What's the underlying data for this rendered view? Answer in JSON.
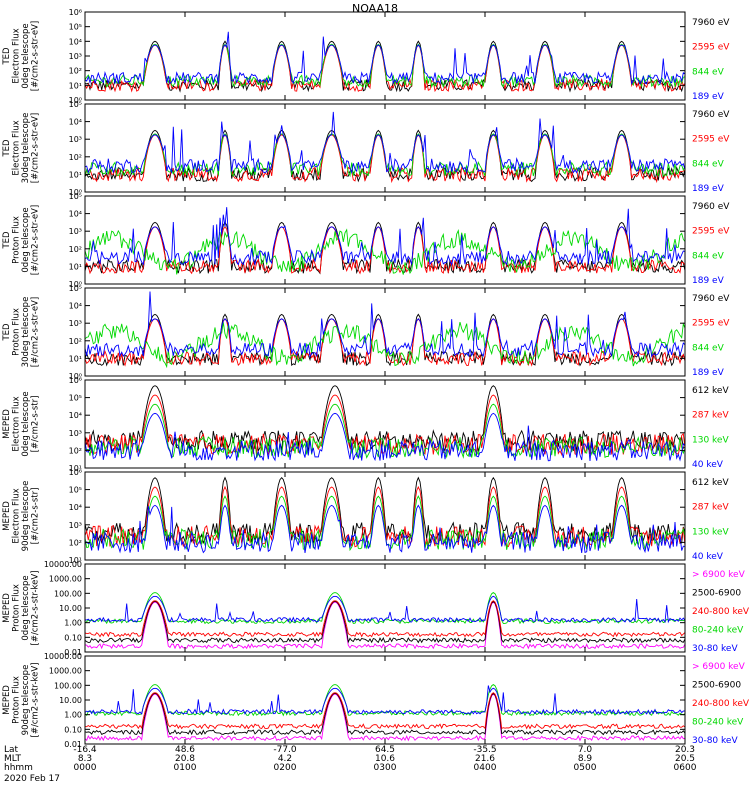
{
  "figure": {
    "title": "NOAA18",
    "date_label": "2020 Feb 17"
  },
  "colors": {
    "black": "#000000",
    "red": "#ff0000",
    "green": "#00d800",
    "blue": "#0000ff",
    "magenta": "#ff00ff"
  },
  "chart_data": [
    {
      "type": "line",
      "name": "panel-ted-electron-0deg",
      "ylabel": [
        "TED",
        "Electron Flux",
        "0deg telescope",
        "[#/cm2-s-str-eV]"
      ],
      "yticks": [
        "10⁰",
        "10¹",
        "10²",
        "10³",
        "10⁴",
        "10⁵",
        "10⁶"
      ],
      "ylim_exp": [
        0,
        6
      ],
      "legend": [
        {
          "label": "7960 eV",
          "color": "black"
        },
        {
          "label": "2595 eV",
          "color": "red"
        },
        {
          "label": "844 eV",
          "color": "green"
        },
        {
          "label": "189 eV",
          "color": "blue"
        }
      ]
    },
    {
      "type": "line",
      "name": "panel-ted-electron-30deg",
      "ylabel": [
        "TED",
        "Electron Flux",
        "30deg telescope",
        "[#/cm2-s-str-eV]"
      ],
      "yticks": [
        "10⁰",
        "10¹",
        "10²",
        "10³",
        "10⁴",
        "10⁵"
      ],
      "ylim_exp": [
        0,
        5
      ],
      "legend": [
        {
          "label": "7960 eV",
          "color": "black"
        },
        {
          "label": "2595 eV",
          "color": "red"
        },
        {
          "label": "844 eV",
          "color": "green"
        },
        {
          "label": "189 eV",
          "color": "blue"
        }
      ]
    },
    {
      "type": "line",
      "name": "panel-ted-proton-0deg",
      "ylabel": [
        "TED",
        "Proton Flux",
        "0deg telescope",
        "[#/cm2-s-str-eV]"
      ],
      "yticks": [
        "10⁰",
        "10¹",
        "10²",
        "10³",
        "10⁴",
        "10⁵"
      ],
      "ylim_exp": [
        0,
        5
      ],
      "legend": [
        {
          "label": "7960 eV",
          "color": "black"
        },
        {
          "label": "2595 eV",
          "color": "red"
        },
        {
          "label": "844 eV",
          "color": "green"
        },
        {
          "label": "189 eV",
          "color": "blue"
        }
      ]
    },
    {
      "type": "line",
      "name": "panel-ted-proton-30deg",
      "ylabel": [
        "TED",
        "Proton Flux",
        "30deg telescope",
        "[#/cm2-s-str-eV]"
      ],
      "yticks": [
        "10⁰",
        "10¹",
        "10²",
        "10³",
        "10⁴",
        "10⁵"
      ],
      "ylim_exp": [
        0,
        5
      ],
      "legend": [
        {
          "label": "7960 eV",
          "color": "black"
        },
        {
          "label": "2595 eV",
          "color": "red"
        },
        {
          "label": "844 eV",
          "color": "green"
        },
        {
          "label": "189 eV",
          "color": "blue"
        }
      ]
    },
    {
      "type": "line",
      "name": "panel-meped-electron-0deg",
      "ylabel": [
        "MEPED",
        "Electron Flux",
        "0deg telescope",
        "[#/cm2-s-str]"
      ],
      "yticks": [
        "10¹",
        "10²",
        "10³",
        "10⁴",
        "10⁵",
        "10⁶"
      ],
      "ylim_exp": [
        1,
        6
      ],
      "legend": [
        {
          "label": "612 keV",
          "color": "black"
        },
        {
          "label": "287 keV",
          "color": "red"
        },
        {
          "label": "130 keV",
          "color": "green"
        },
        {
          "label": "40 keV",
          "color": "blue"
        }
      ]
    },
    {
      "type": "line",
      "name": "panel-meped-electron-90deg",
      "ylabel": [
        "MEPED",
        "Electron Flux",
        "90deg telescope",
        "[#/cm2-s-str]"
      ],
      "yticks": [
        "10¹",
        "10²",
        "10³",
        "10⁴",
        "10⁵",
        "10⁶"
      ],
      "ylim_exp": [
        1,
        6
      ],
      "legend": [
        {
          "label": "612 keV",
          "color": "black"
        },
        {
          "label": "287 keV",
          "color": "red"
        },
        {
          "label": "130 keV",
          "color": "green"
        },
        {
          "label": "40 keV",
          "color": "blue"
        }
      ]
    },
    {
      "type": "line",
      "name": "panel-meped-proton-0deg",
      "ylabel": [
        "MEPED",
        "Proton Flux",
        "0deg telescope",
        "[#/cm2-s-str-keV]"
      ],
      "yticks": [
        "0.01",
        "0.10",
        "1.00",
        "10.00",
        "100.00",
        "1000.00",
        "10000.00"
      ],
      "ylim_exp": [
        -2,
        4
      ],
      "legend": [
        {
          "label": "> 6900 keV",
          "color": "magenta"
        },
        {
          "label": "2500-6900",
          "color": "black"
        },
        {
          "label": "240-800 keV",
          "color": "red"
        },
        {
          "label": "80-240 keV",
          "color": "green"
        },
        {
          "label": "30-80 keV",
          "color": "blue"
        }
      ]
    },
    {
      "type": "line",
      "name": "panel-meped-proton-90deg",
      "ylabel": [
        "MEPED",
        "Proton Flux",
        "90deg telescope",
        "[#/cm2-s-str-keV]"
      ],
      "yticks": [
        "0.01",
        "0.10",
        "1.00",
        "10.00",
        "100.00",
        "1000.00",
        "10000.00"
      ],
      "ylim_exp": [
        -2,
        4
      ],
      "legend": [
        {
          "label": "> 6900 keV",
          "color": "magenta"
        },
        {
          "label": "2500-6900",
          "color": "black"
        },
        {
          "label": "240-800 keV",
          "color": "red"
        },
        {
          "label": "80-240 keV",
          "color": "green"
        },
        {
          "label": "30-80 keV",
          "color": "blue"
        }
      ]
    }
  ],
  "x_axis": {
    "row_labels": [
      "Lat",
      "MLT",
      "hhmm"
    ],
    "ticks": [
      {
        "time_min": 0,
        "lat": "-16.4",
        "mlt": "8.3",
        "hhmm": "0000"
      },
      {
        "time_min": 60,
        "lat": "48.6",
        "mlt": "20.8",
        "hhmm": "0100"
      },
      {
        "time_min": 120,
        "lat": "-77.0",
        "mlt": "4.2",
        "hhmm": "0200"
      },
      {
        "time_min": 180,
        "lat": "64.5",
        "mlt": "10.6",
        "hhmm": "0300"
      },
      {
        "time_min": 240,
        "lat": "-35.5",
        "mlt": "21.6",
        "hhmm": "0400"
      },
      {
        "time_min": 300,
        "lat": "7.0",
        "mlt": "8.9",
        "hhmm": "0500"
      },
      {
        "time_min": 360,
        "lat": "20.3",
        "mlt": "20.5",
        "hhmm": "0600"
      }
    ],
    "xlim": [
      0,
      360
    ]
  }
}
